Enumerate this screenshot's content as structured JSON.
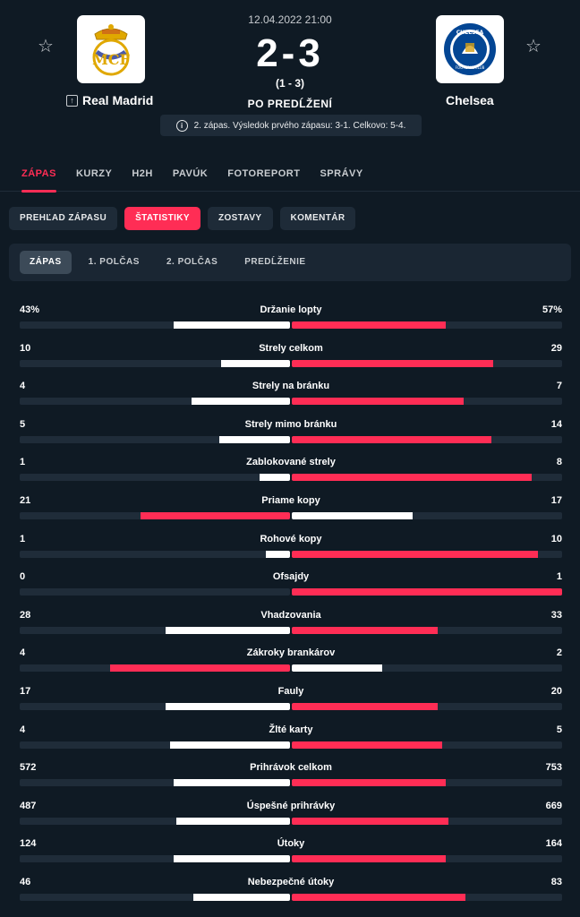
{
  "colors": {
    "accent": "#ff2d55",
    "background": "#0f1a24",
    "panel": "#1e2b38"
  },
  "match": {
    "datetime": "12.04.2022 21:00",
    "score": "2-3",
    "sub_score": "(1 - 3)",
    "status": "PO PREDĹŽENÍ",
    "info": "2. zápas. Výsledok prvého zápasu: 3-1. Celkovo: 5-4."
  },
  "home": {
    "name": "Real Madrid",
    "logo_icon": "real-madrid-crest"
  },
  "away": {
    "name": "Chelsea",
    "logo_icon": "chelsea-crest",
    "logo_text": "CHELSEA",
    "logo_subtext": "FOOTBALL CLUB"
  },
  "tabs": [
    "ZÁPAS",
    "KURZY",
    "H2H",
    "PAVÚK",
    "FOTOREPORT",
    "SPRÁVY"
  ],
  "subtabs": [
    "PREHĽAD ZÁPASU",
    "ŠTATISTIKY",
    "ZOSTAVY",
    "KOMENTÁR"
  ],
  "periods": [
    "ZÁPAS",
    "1. POLČAS",
    "2. POLČAS",
    "PREDĹŽENIE"
  ],
  "stats": [
    {
      "label": "Držanie lopty",
      "home": "43%",
      "away": "57%",
      "h": 43,
      "a": 57
    },
    {
      "label": "Strely celkom",
      "home": "10",
      "away": "29",
      "h": 10,
      "a": 29
    },
    {
      "label": "Strely na bránku",
      "home": "4",
      "away": "7",
      "h": 4,
      "a": 7
    },
    {
      "label": "Strely mimo bránku",
      "home": "5",
      "away": "14",
      "h": 5,
      "a": 14
    },
    {
      "label": "Zablokované strely",
      "home": "1",
      "away": "8",
      "h": 1,
      "a": 8
    },
    {
      "label": "Priame kopy",
      "home": "21",
      "away": "17",
      "h": 21,
      "a": 17
    },
    {
      "label": "Rohové kopy",
      "home": "1",
      "away": "10",
      "h": 1,
      "a": 10
    },
    {
      "label": "Ofsajdy",
      "home": "0",
      "away": "1",
      "h": 0,
      "a": 1
    },
    {
      "label": "Vhadzovania",
      "home": "28",
      "away": "33",
      "h": 28,
      "a": 33
    },
    {
      "label": "Zákroky brankárov",
      "home": "4",
      "away": "2",
      "h": 4,
      "a": 2
    },
    {
      "label": "Fauly",
      "home": "17",
      "away": "20",
      "h": 17,
      "a": 20
    },
    {
      "label": "Žlté karty",
      "home": "4",
      "away": "5",
      "h": 4,
      "a": 5
    },
    {
      "label": "Prihrávok celkom",
      "home": "572",
      "away": "753",
      "h": 572,
      "a": 753
    },
    {
      "label": "Úspešné prihrávky",
      "home": "487",
      "away": "669",
      "h": 487,
      "a": 669
    },
    {
      "label": "Útoky",
      "home": "124",
      "away": "164",
      "h": 124,
      "a": 164
    },
    {
      "label": "Nebezpečné útoky",
      "home": "46",
      "away": "83",
      "h": 46,
      "a": 83
    }
  ]
}
